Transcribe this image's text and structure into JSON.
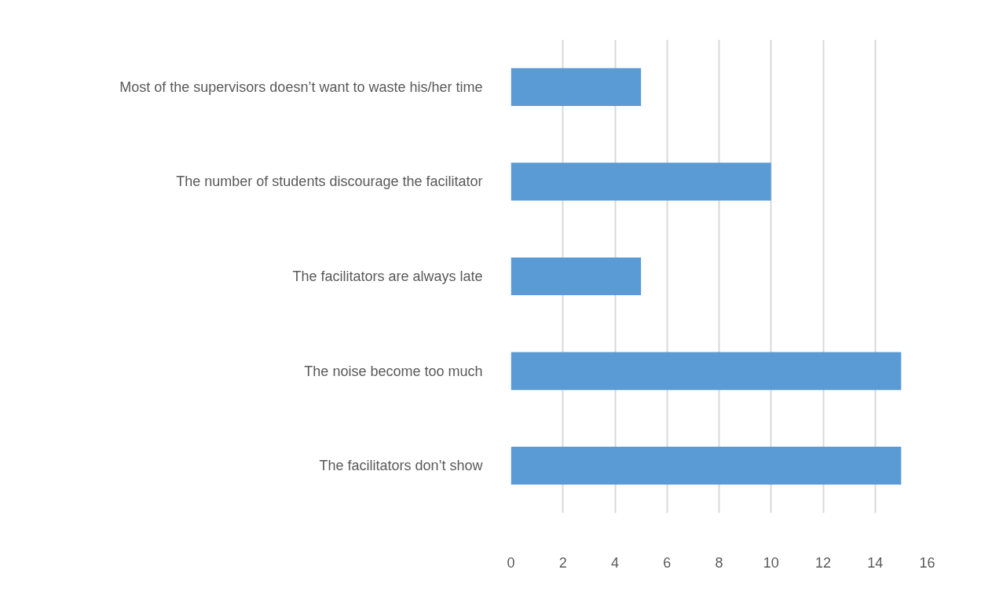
{
  "chart_data": {
    "type": "bar",
    "orientation": "horizontal",
    "categories": [
      "Most of the supervisors doesn’t want to waste his/her time",
      "The number of students discourage the facilitator",
      "The facilitators are always late",
      "The noise become too much",
      "The facilitators don’t show"
    ],
    "values": [
      5,
      10,
      5,
      15,
      15
    ],
    "color": "#5b9bd5",
    "xlim": [
      0,
      16
    ],
    "xticks": [
      0,
      2,
      4,
      6,
      8,
      10,
      12,
      14,
      16
    ],
    "grid": "x"
  }
}
